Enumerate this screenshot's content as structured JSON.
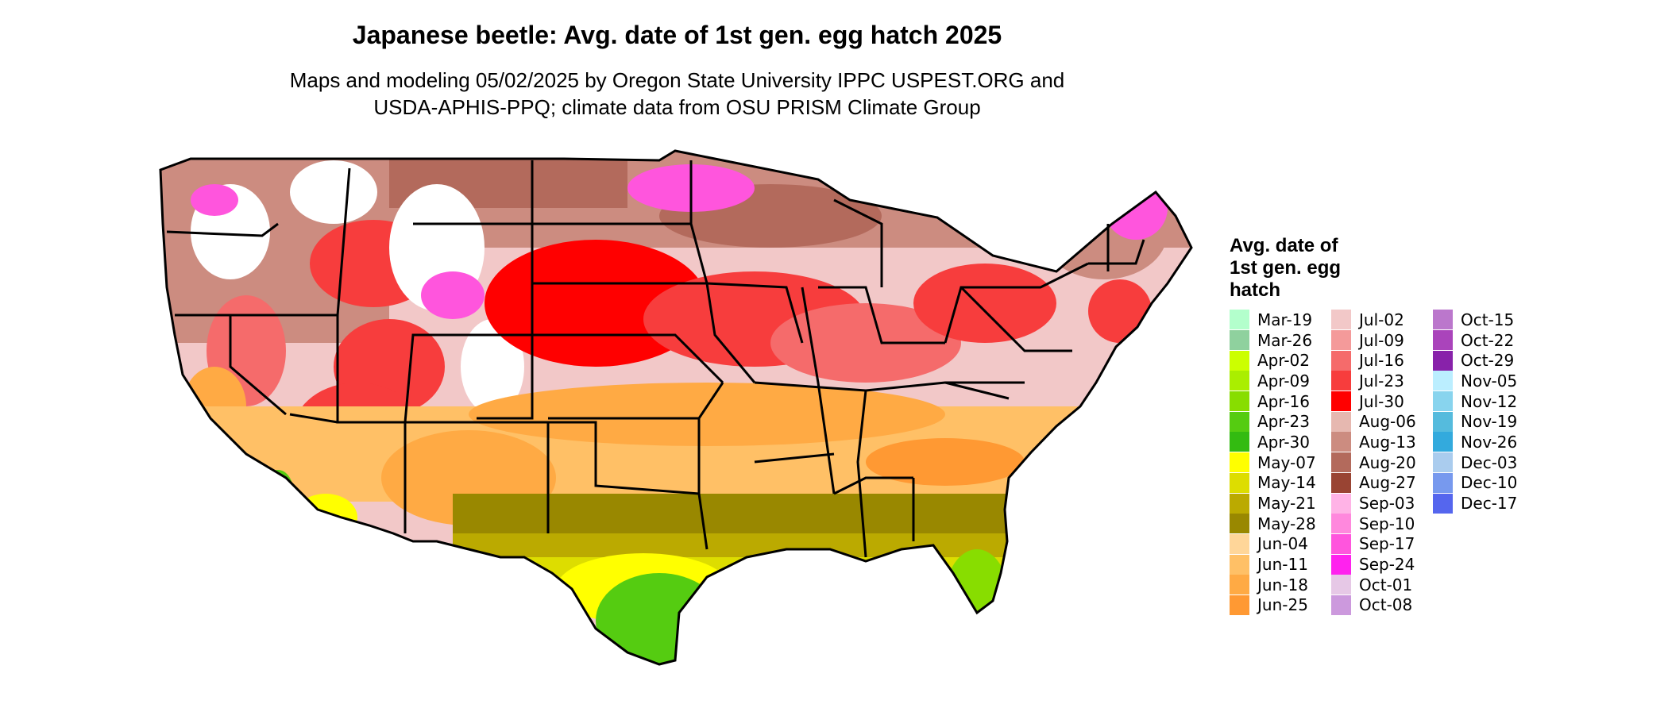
{
  "title": "Japanese beetle: Avg. date of 1st gen. egg hatch 2025",
  "subtitle": {
    "line1": "Maps and modeling 05/02/2025 by Oregon State University IPPC USPEST.ORG and",
    "line2": "USDA-APHIS-PPQ; climate data from OSU PRISM Climate Group"
  },
  "legend": {
    "title_lines": [
      "Avg. date of",
      "1st gen. egg",
      "hatch"
    ],
    "columns": [
      [
        {
          "label": "Mar-19",
          "color": "#b3ffcc"
        },
        {
          "label": "Mar-26",
          "color": "#8fd19e"
        },
        {
          "label": "Apr-02",
          "color": "#ccff00"
        },
        {
          "label": "Apr-09",
          "color": "#aaee00"
        },
        {
          "label": "Apr-16",
          "color": "#88dd00"
        },
        {
          "label": "Apr-23",
          "color": "#55cc11"
        },
        {
          "label": "Apr-30",
          "color": "#33bb11"
        },
        {
          "label": "May-07",
          "color": "#ffff00"
        },
        {
          "label": "May-14",
          "color": "#dddd00"
        },
        {
          "label": "May-21",
          "color": "#bbaa00"
        },
        {
          "label": "May-28",
          "color": "#998800"
        },
        {
          "label": "Jun-04",
          "color": "#ffd699"
        },
        {
          "label": "Jun-11",
          "color": "#ffc066"
        },
        {
          "label": "Jun-18",
          "color": "#ffaa44"
        },
        {
          "label": "Jun-25",
          "color": "#ff9933"
        }
      ],
      [
        {
          "label": "Jul-02",
          "color": "#f2c8c8"
        },
        {
          "label": "Jul-09",
          "color": "#f49a9a"
        },
        {
          "label": "Jul-16",
          "color": "#f56b6b"
        },
        {
          "label": "Jul-23",
          "color": "#f73d3d"
        },
        {
          "label": "Jul-30",
          "color": "#ff0000"
        },
        {
          "label": "Aug-06",
          "color": "#e6b8b0"
        },
        {
          "label": "Aug-13",
          "color": "#cc8c80"
        },
        {
          "label": "Aug-20",
          "color": "#b36a5c"
        },
        {
          "label": "Aug-27",
          "color": "#994433"
        },
        {
          "label": "Sep-03",
          "color": "#ffb3e6"
        },
        {
          "label": "Sep-10",
          "color": "#ff88dd"
        },
        {
          "label": "Sep-17",
          "color": "#ff55dd"
        },
        {
          "label": "Sep-24",
          "color": "#ff22ee"
        },
        {
          "label": "Oct-01",
          "color": "#e6c8e6"
        },
        {
          "label": "Oct-08",
          "color": "#cc99dd"
        }
      ],
      [
        {
          "label": "Oct-15",
          "color": "#bb77cc"
        },
        {
          "label": "Oct-22",
          "color": "#aa44bb"
        },
        {
          "label": "Oct-29",
          "color": "#8822aa"
        },
        {
          "label": "Nov-05",
          "color": "#bbeeff"
        },
        {
          "label": "Nov-12",
          "color": "#88d4ee"
        },
        {
          "label": "Nov-19",
          "color": "#55bbdd"
        },
        {
          "label": "Nov-26",
          "color": "#33aadd"
        },
        {
          "label": "Dec-03",
          "color": "#aaccee"
        },
        {
          "label": "Dec-10",
          "color": "#7799ee"
        },
        {
          "label": "Dec-17",
          "color": "#5566ee"
        }
      ]
    ]
  }
}
